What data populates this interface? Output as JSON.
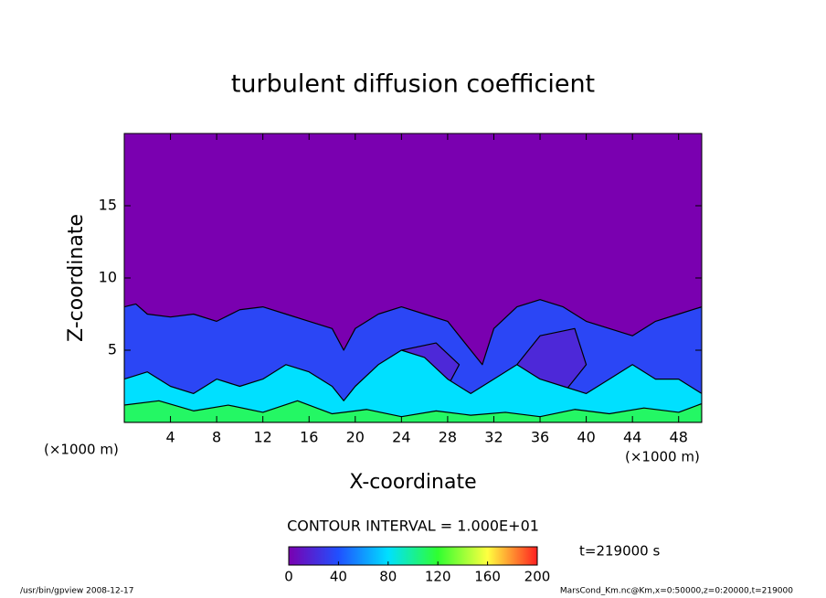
{
  "chart_data": {
    "type": "contour",
    "title": "turbulent diffusion coefficient",
    "xlabel": "X-coordinate",
    "ylabel": "Z-coordinate",
    "xunit": "(×1000 m)",
    "yunit": "(×1000 m)",
    "xlim": [
      0,
      50
    ],
    "ylim": [
      0,
      20
    ],
    "xticks": [
      4,
      8,
      12,
      16,
      20,
      24,
      28,
      32,
      36,
      40,
      44,
      48
    ],
    "yticks": [
      5,
      10,
      15
    ],
    "background_value": 0,
    "colormap": [
      "#7a00b0",
      "#2050ff",
      "#00e0ff",
      "#30ff30",
      "#ffff40",
      "#ff2020"
    ],
    "clim": [
      0,
      200
    ],
    "colorbar_ticks": [
      0,
      40,
      80,
      120,
      160,
      200
    ],
    "contour_interval": "CONTOUR INTERVAL = 1.000E+01",
    "time_label": "t=219000 s",
    "footer_left": "/usr/bin/gpview   2008-12-17",
    "footer_right": "MarsCond_Km.nc@Km,x=0:50000,z=0:20000,t=219000",
    "regions": [
      {
        "value": 35,
        "x": [
          0,
          0,
          1,
          2,
          4,
          6,
          8,
          10,
          12,
          14,
          16,
          18,
          19,
          20,
          22,
          24,
          26,
          28,
          30,
          31,
          32,
          34,
          36,
          38,
          40,
          42,
          44,
          46,
          48,
          50,
          50
        ],
        "z": [
          0,
          8,
          8.2,
          7.5,
          7.3,
          7.5,
          7,
          7.8,
          8,
          7.5,
          7,
          6.5,
          5,
          6.5,
          7.5,
          8,
          7.5,
          7,
          5,
          4,
          6.5,
          8,
          8.5,
          8,
          7,
          6.5,
          6,
          7,
          7.5,
          8,
          0
        ]
      },
      {
        "value": 20,
        "x": [
          22,
          24,
          27,
          29,
          28,
          25,
          22
        ],
        "z": [
          3,
          5,
          5.5,
          4,
          2.5,
          2,
          3
        ]
      },
      {
        "value": 20,
        "x": [
          34,
          36,
          39,
          40,
          38,
          35,
          34
        ],
        "z": [
          4,
          6,
          6.5,
          4,
          2,
          2.5,
          4
        ]
      },
      {
        "value": 80,
        "x": [
          0,
          0,
          2,
          4,
          6,
          8,
          10,
          12,
          14,
          16,
          18,
          19,
          20,
          22,
          24,
          26,
          28,
          30,
          32,
          34,
          36,
          38,
          40,
          42,
          44,
          46,
          48,
          50,
          50
        ],
        "z": [
          0,
          3,
          3.5,
          2.5,
          2,
          3,
          2.5,
          3,
          4,
          3.5,
          2.5,
          1.5,
          2.5,
          4,
          5,
          4.5,
          3,
          2,
          3,
          4,
          3,
          2.5,
          2,
          3,
          4,
          3,
          3,
          2,
          0
        ]
      },
      {
        "value": 110,
        "x": [
          0,
          0,
          3,
          6,
          9,
          12,
          15,
          18,
          21,
          24,
          27,
          30,
          33,
          36,
          39,
          42,
          45,
          48,
          50,
          50
        ],
        "z": [
          0,
          1.2,
          1.5,
          0.8,
          1.2,
          0.7,
          1.5,
          0.6,
          0.9,
          0.4,
          0.8,
          0.5,
          0.7,
          0.4,
          0.9,
          0.6,
          1,
          0.7,
          1.3,
          0
        ]
      }
    ]
  }
}
